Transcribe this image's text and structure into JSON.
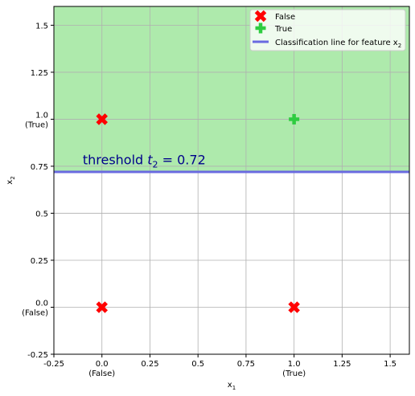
{
  "chart_data": {
    "type": "scatter",
    "xlabel": "x",
    "xlabel_sub": "1",
    "ylabel": "x",
    "ylabel_sub": "2",
    "xlim": [
      -0.25,
      1.6
    ],
    "ylim": [
      -0.25,
      1.6
    ],
    "grid": true,
    "legend_position": "top-right",
    "x_ticks": [
      {
        "value": -0.25,
        "label": "-0.25",
        "sub": ""
      },
      {
        "value": 0.0,
        "label": "0.0",
        "sub": "(False)"
      },
      {
        "value": 0.25,
        "label": "0.25",
        "sub": ""
      },
      {
        "value": 0.5,
        "label": "0.5",
        "sub": ""
      },
      {
        "value": 0.75,
        "label": "0.75",
        "sub": ""
      },
      {
        "value": 1.0,
        "label": "1.0",
        "sub": "(True)"
      },
      {
        "value": 1.25,
        "label": "1.25",
        "sub": ""
      },
      {
        "value": 1.5,
        "label": "1.5",
        "sub": ""
      }
    ],
    "y_ticks": [
      {
        "value": -0.25,
        "label": "-0.25",
        "sub": ""
      },
      {
        "value": 0.0,
        "label": "0.0",
        "sub": "(False)"
      },
      {
        "value": 0.25,
        "label": "0.25",
        "sub": ""
      },
      {
        "value": 0.5,
        "label": "0.5",
        "sub": ""
      },
      {
        "value": 0.75,
        "label": "0.75",
        "sub": ""
      },
      {
        "value": 1.0,
        "label": "1.0",
        "sub": "(True)"
      },
      {
        "value": 1.25,
        "label": "1.25",
        "sub": ""
      },
      {
        "value": 1.5,
        "label": "1.5",
        "sub": ""
      }
    ],
    "series": [
      {
        "name": "False",
        "marker": "X",
        "color": "#ff0000",
        "points": [
          [
            0,
            0
          ],
          [
            1,
            0
          ],
          [
            0,
            1
          ]
        ]
      },
      {
        "name": "True",
        "marker": "P",
        "color": "#2ecc40",
        "points": [
          [
            1,
            1
          ]
        ]
      }
    ],
    "threshold": {
      "value": 0.72,
      "line_label_prefix": "Classification line for feature x",
      "line_label_sub": "2",
      "line_color": "#6a6ae0",
      "region_color": "#aeeaac",
      "annotation_prefix": "threshold t",
      "annotation_sub": "2",
      "annotation_suffix": " = 0.72",
      "annotation_x": -0.1,
      "annotation_y": 0.76
    }
  }
}
